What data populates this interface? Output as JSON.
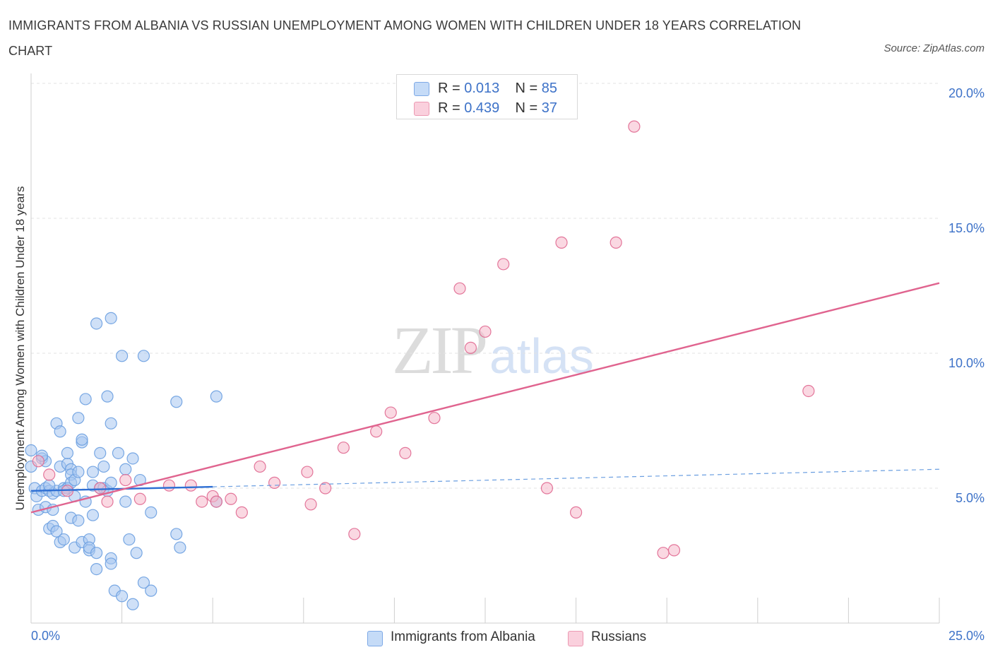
{
  "title": "IMMIGRANTS FROM ALBANIA VS RUSSIAN UNEMPLOYMENT AMONG WOMEN WITH CHILDREN UNDER 18 YEARS CORRELATION CHART",
  "source": "Source: ZipAtlas.com",
  "watermark": {
    "zip": "ZIP",
    "atlas": "atlas"
  },
  "legend_top": [
    {
      "r_label": "R =",
      "r_value": "0.013",
      "n_label": "N =",
      "n_value": "85",
      "color": "#a8c6f0"
    },
    {
      "r_label": "R =",
      "r_value": "0.439",
      "n_label": "N =",
      "n_value": "37",
      "color": "#f5b8ca"
    }
  ],
  "legend_bottom": [
    {
      "label": "Immigrants from Albania",
      "color": "#a8c6f0"
    },
    {
      "label": "Russians",
      "color": "#f5b8ca"
    }
  ],
  "axes": {
    "ylabel": "Unemployment Among Women with Children Under 18 years",
    "x_min_label": "0.0%",
    "x_max_label": "25.0%",
    "y_tick_labels": [
      "20.0%",
      "15.0%",
      "10.0%",
      "5.0%"
    ]
  },
  "chart_data": {
    "type": "scatter",
    "title": "IMMIGRANTS FROM ALBANIA VS RUSSIAN UNEMPLOYMENT AMONG WOMEN WITH CHILDREN UNDER 18 YEARS CORRELATION CHART",
    "xlabel": "",
    "ylabel": "Unemployment Among Women with Children Under 18 years",
    "xlim": [
      0,
      25
    ],
    "ylim": [
      0,
      20
    ],
    "y_ticks": [
      5,
      10,
      15,
      20
    ],
    "grid": "horizontal dashed",
    "legend_position": "top-center",
    "series": [
      {
        "name": "Immigrants from Albania",
        "color": "#6a9ee0",
        "fill": "#a8c6f0",
        "trend": {
          "x": [
            0,
            5
          ],
          "y": [
            4.9,
            5.05
          ],
          "style": "solid",
          "extended_to": [
            25,
            5.7
          ],
          "extended_style": "dashed"
        },
        "points": [
          [
            0.0,
            6.4
          ],
          [
            0.0,
            5.8
          ],
          [
            0.1,
            5.0
          ],
          [
            0.15,
            4.7
          ],
          [
            0.2,
            4.2
          ],
          [
            0.3,
            6.1
          ],
          [
            0.3,
            4.9
          ],
          [
            0.4,
            5.0
          ],
          [
            0.4,
            4.3
          ],
          [
            0.4,
            6.0
          ],
          [
            0.5,
            3.5
          ],
          [
            0.5,
            4.9
          ],
          [
            0.6,
            3.6
          ],
          [
            0.6,
            4.2
          ],
          [
            0.6,
            4.8
          ],
          [
            0.7,
            3.4
          ],
          [
            0.7,
            7.4
          ],
          [
            0.7,
            4.9
          ],
          [
            0.8,
            7.1
          ],
          [
            0.8,
            5.8
          ],
          [
            0.8,
            3.0
          ],
          [
            0.9,
            3.1
          ],
          [
            0.9,
            5.0
          ],
          [
            1.0,
            5.0
          ],
          [
            1.0,
            5.9
          ],
          [
            1.0,
            5.0
          ],
          [
            1.0,
            6.3
          ],
          [
            1.1,
            5.7
          ],
          [
            1.1,
            5.5
          ],
          [
            1.1,
            5.2
          ],
          [
            1.1,
            3.9
          ],
          [
            1.2,
            2.8
          ],
          [
            1.2,
            5.3
          ],
          [
            1.3,
            5.6
          ],
          [
            1.3,
            7.6
          ],
          [
            1.3,
            3.8
          ],
          [
            1.4,
            6.7
          ],
          [
            1.4,
            6.8
          ],
          [
            1.4,
            3.0
          ],
          [
            1.5,
            8.3
          ],
          [
            1.5,
            4.5
          ],
          [
            1.6,
            2.7
          ],
          [
            1.6,
            3.1
          ],
          [
            1.6,
            2.8
          ],
          [
            1.7,
            4.0
          ],
          [
            1.7,
            5.1
          ],
          [
            1.7,
            5.6
          ],
          [
            1.8,
            2.6
          ],
          [
            1.8,
            2.0
          ],
          [
            1.9,
            6.3
          ],
          [
            1.9,
            5.0
          ],
          [
            2.0,
            5.8
          ],
          [
            2.0,
            5.0
          ],
          [
            2.1,
            8.4
          ],
          [
            2.1,
            4.9
          ],
          [
            2.2,
            7.4
          ],
          [
            2.2,
            5.2
          ],
          [
            2.2,
            2.4
          ],
          [
            2.2,
            2.2
          ],
          [
            2.3,
            1.2
          ],
          [
            2.4,
            6.3
          ],
          [
            2.5,
            1.0
          ],
          [
            2.6,
            5.7
          ],
          [
            2.6,
            4.5
          ],
          [
            2.7,
            3.1
          ],
          [
            2.8,
            0.7
          ],
          [
            2.8,
            6.1
          ],
          [
            2.9,
            2.6
          ],
          [
            3.0,
            5.3
          ],
          [
            3.1,
            1.5
          ],
          [
            3.3,
            4.1
          ],
          [
            3.3,
            1.2
          ],
          [
            4.0,
            8.2
          ],
          [
            4.0,
            3.3
          ],
          [
            4.1,
            2.8
          ],
          [
            5.1,
            4.5
          ],
          [
            5.1,
            8.4
          ],
          [
            1.8,
            11.1
          ],
          [
            2.2,
            11.3
          ],
          [
            2.5,
            9.9
          ],
          [
            3.1,
            9.9
          ],
          [
            0.5,
            5.1
          ],
          [
            0.9,
            4.9
          ],
          [
            1.2,
            4.7
          ],
          [
            0.3,
            6.2
          ]
        ]
      },
      {
        "name": "Russians",
        "color": "#e06890",
        "fill": "#f5b8ca",
        "trend": {
          "x": [
            0,
            25
          ],
          "y": [
            4.1,
            12.6
          ],
          "style": "solid"
        },
        "points": [
          [
            0.2,
            6.0
          ],
          [
            0.5,
            5.5
          ],
          [
            1.0,
            4.9
          ],
          [
            1.9,
            5.0
          ],
          [
            2.1,
            4.5
          ],
          [
            2.6,
            5.3
          ],
          [
            3.0,
            4.6
          ],
          [
            3.8,
            5.1
          ],
          [
            4.4,
            5.1
          ],
          [
            4.7,
            4.5
          ],
          [
            5.0,
            4.7
          ],
          [
            5.1,
            4.5
          ],
          [
            5.5,
            4.6
          ],
          [
            5.8,
            4.1
          ],
          [
            6.3,
            5.8
          ],
          [
            6.7,
            5.2
          ],
          [
            7.6,
            5.6
          ],
          [
            7.7,
            4.4
          ],
          [
            8.1,
            5.0
          ],
          [
            8.6,
            6.5
          ],
          [
            8.9,
            3.3
          ],
          [
            9.5,
            7.1
          ],
          [
            9.9,
            7.8
          ],
          [
            10.3,
            6.3
          ],
          [
            11.1,
            7.6
          ],
          [
            11.8,
            12.4
          ],
          [
            12.1,
            10.2
          ],
          [
            12.5,
            10.8
          ],
          [
            13.0,
            13.3
          ],
          [
            14.2,
            5.0
          ],
          [
            14.6,
            14.1
          ],
          [
            15.0,
            4.1
          ],
          [
            16.1,
            14.1
          ],
          [
            16.6,
            18.4
          ],
          [
            17.4,
            2.6
          ],
          [
            17.7,
            2.7
          ],
          [
            21.4,
            8.6
          ]
        ]
      }
    ]
  }
}
